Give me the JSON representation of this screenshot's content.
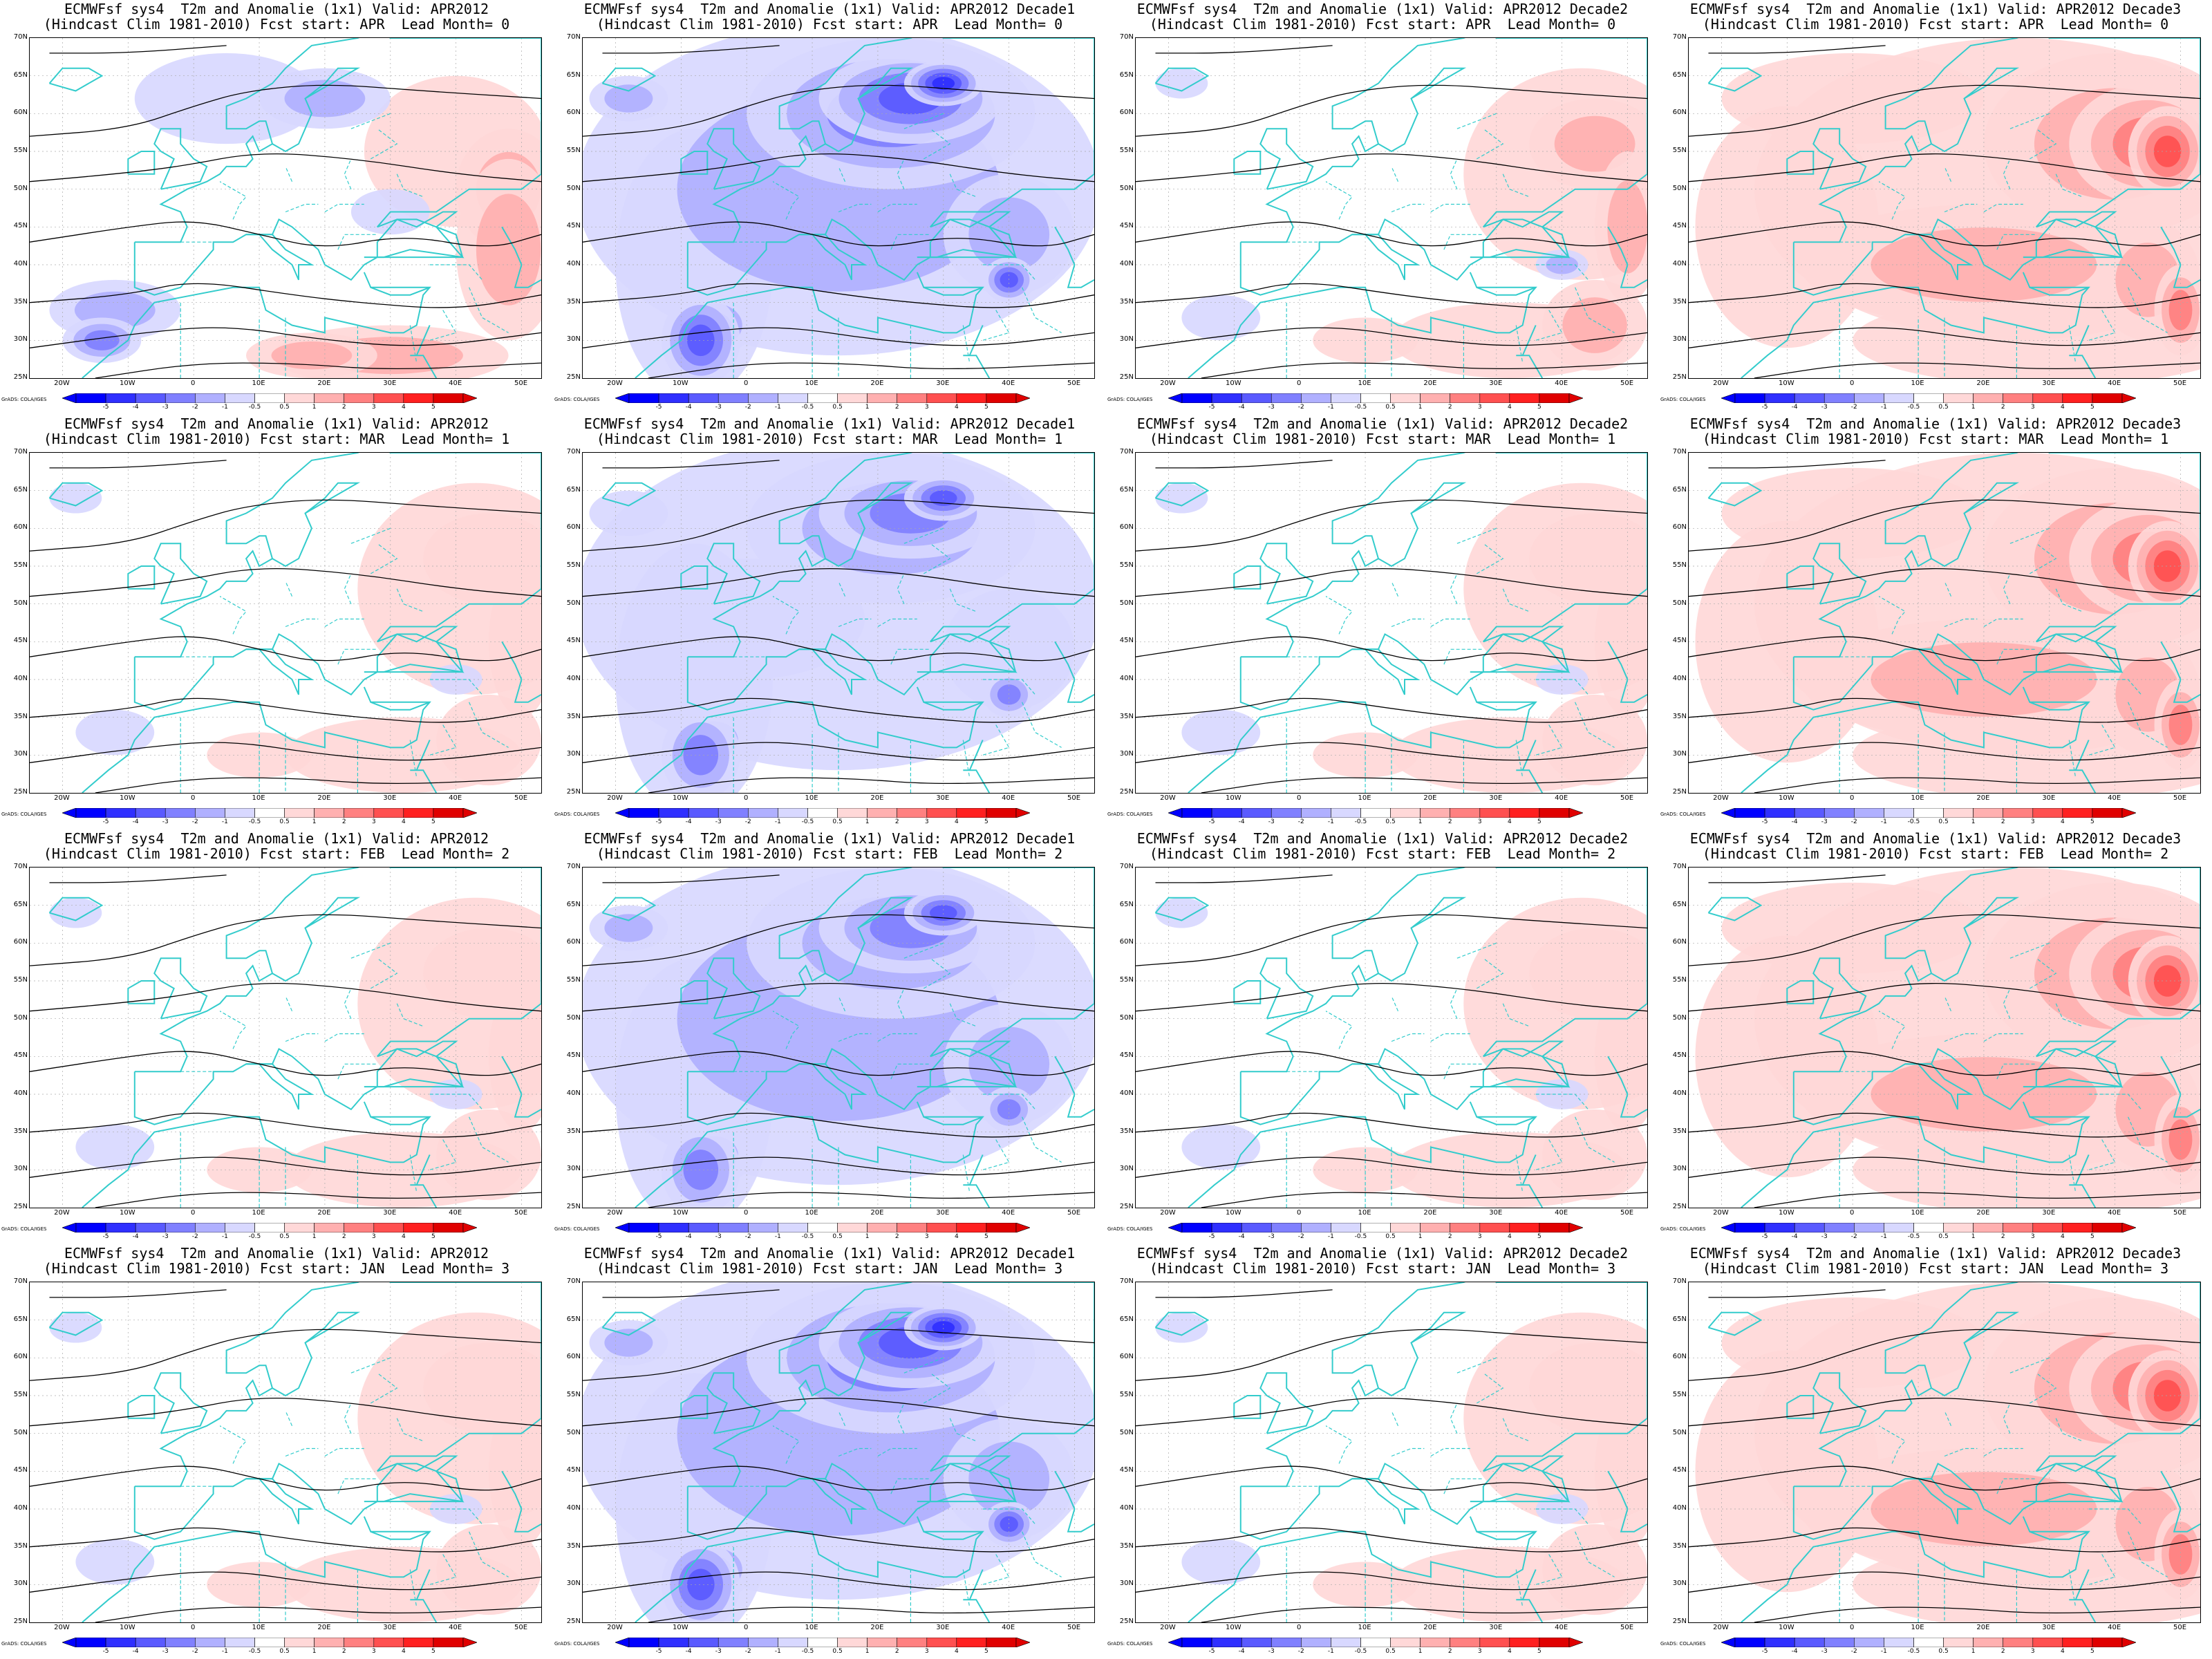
{
  "figure": {
    "common_title_prefix": "ECMWFsf sys4  T2m and Anomalie (1x1) Valid: ",
    "hindcast_prefix": "(Hindcast Clim 1981-2010) Fcst start: ",
    "lead_prefix": "  Lead Month= ",
    "credit": "GrADS: COLA/IGES",
    "lat_labels": [
      "70N",
      "65N",
      "60N",
      "55N",
      "50N",
      "45N",
      "40N",
      "35N",
      "30N",
      "25N"
    ],
    "lon_labels": [
      "20W",
      "10W",
      "0",
      "10E",
      "20E",
      "30E",
      "40E",
      "50E"
    ],
    "colorbar_labels": [
      "-5",
      "-4",
      "-3",
      "-2",
      "-1",
      "-0.5",
      "0.5",
      "1",
      "2",
      "3",
      "4",
      "5"
    ],
    "colorbar_colors": [
      "#0000ff",
      "#2f2fff",
      "#5a5aff",
      "#8080ff",
      "#b0b0ff",
      "#d8d8ff",
      "#ffffff",
      "#ffd8d8",
      "#ffb0b0",
      "#ff8080",
      "#ff5050",
      "#ff2020",
      "#e00000"
    ],
    "coastline_color": "#33cccc",
    "contour_color": "#000000"
  },
  "rows": [
    {
      "fcst_start": "APR",
      "lead": "0"
    },
    {
      "fcst_start": "MAR",
      "lead": "1"
    },
    {
      "fcst_start": "FEB",
      "lead": "2"
    },
    {
      "fcst_start": "JAN",
      "lead": "3"
    }
  ],
  "columns": [
    {
      "valid": "APR2012",
      "pattern": "mixed"
    },
    {
      "valid": "APR2012 Decade1",
      "pattern": "cold"
    },
    {
      "valid": "APR2012 Decade2",
      "pattern": "warm-east"
    },
    {
      "valid": "APR2012 Decade3",
      "pattern": "warm"
    }
  ],
  "panels": [
    {
      "title1": "ECMWFsf sys4  T2m and Anomalie (1x1) Valid: APR2012",
      "title2": "(Hindcast Clim 1981-2010) Fcst start: APR  Lead Month= 0",
      "anom": "mixed",
      "strength": 1.0
    },
    {
      "title1": "ECMWFsf sys4  T2m and Anomalie (1x1) Valid: APR2012 Decade1",
      "title2": "(Hindcast Clim 1981-2010) Fcst start: APR  Lead Month= 0",
      "anom": "cold",
      "strength": 1.0
    },
    {
      "title1": "ECMWFsf sys4  T2m and Anomalie (1x1) Valid: APR2012 Decade2",
      "title2": "(Hindcast Clim 1981-2010) Fcst start: APR  Lead Month= 0",
      "anom": "warm-east",
      "strength": 0.8
    },
    {
      "title1": "ECMWFsf sys4  T2m and Anomalie (1x1) Valid: APR2012 Decade3",
      "title2": "(Hindcast Clim 1981-2010) Fcst start: APR  Lead Month= 0",
      "anom": "warm",
      "strength": 1.0
    },
    {
      "title1": "ECMWFsf sys4  T2m and Anomalie (1x1) Valid: APR2012",
      "title2": "(Hindcast Clim 1981-2010) Fcst start: MAR  Lead Month= 1",
      "anom": "warm-east",
      "strength": 0.6
    },
    {
      "title1": "ECMWFsf sys4  T2m and Anomalie (1x1) Valid: APR2012 Decade1",
      "title2": "(Hindcast Clim 1981-2010) Fcst start: MAR  Lead Month= 1",
      "anom": "cold",
      "strength": 0.7
    },
    {
      "title1": "ECMWFsf sys4  T2m and Anomalie (1x1) Valid: APR2012 Decade2",
      "title2": "(Hindcast Clim 1981-2010) Fcst start: MAR  Lead Month= 1",
      "anom": "warm-east",
      "strength": 0.6
    },
    {
      "title1": "ECMWFsf sys4  T2m and Anomalie (1x1) Valid: APR2012 Decade3",
      "title2": "(Hindcast Clim 1981-2010) Fcst start: MAR  Lead Month= 1",
      "anom": "warm",
      "strength": 0.9
    },
    {
      "title1": "ECMWFsf sys4  T2m and Anomalie (1x1) Valid: APR2012",
      "title2": "(Hindcast Clim 1981-2010) Fcst start: FEB  Lead Month= 2",
      "anom": "warm-east",
      "strength": 0.6
    },
    {
      "title1": "ECMWFsf sys4  T2m and Anomalie (1x1) Valid: APR2012 Decade1",
      "title2": "(Hindcast Clim 1981-2010) Fcst start: FEB  Lead Month= 2",
      "anom": "cold",
      "strength": 0.8
    },
    {
      "title1": "ECMWFsf sys4  T2m and Anomalie (1x1) Valid: APR2012 Decade2",
      "title2": "(Hindcast Clim 1981-2010) Fcst start: FEB  Lead Month= 2",
      "anom": "warm-east",
      "strength": 0.5
    },
    {
      "title1": "ECMWFsf sys4  T2m and Anomalie (1x1) Valid: APR2012 Decade3",
      "title2": "(Hindcast Clim 1981-2010) Fcst start: FEB  Lead Month= 2",
      "anom": "warm",
      "strength": 0.95
    },
    {
      "title1": "ECMWFsf sys4  T2m and Anomalie (1x1) Valid: APR2012",
      "title2": "(Hindcast Clim 1981-2010) Fcst start: JAN  Lead Month= 3",
      "anom": "warm-east",
      "strength": 0.55
    },
    {
      "title1": "ECMWFsf sys4  T2m and Anomalie (1x1) Valid: APR2012 Decade1",
      "title2": "(Hindcast Clim 1981-2010) Fcst start: JAN  Lead Month= 3",
      "anom": "cold",
      "strength": 0.9
    },
    {
      "title1": "ECMWFsf sys4  T2m and Anomalie (1x1) Valid: APR2012 Decade2",
      "title2": "(Hindcast Clim 1981-2010) Fcst start: JAN  Lead Month= 3",
      "anom": "warm-east",
      "strength": 0.55
    },
    {
      "title1": "ECMWFsf sys4  T2m and Anomalie (1x1) Valid: APR2012 Decade3",
      "title2": "(Hindcast Clim 1981-2010) Fcst start: JAN  Lead Month= 3",
      "anom": "warm",
      "strength": 0.95
    }
  ]
}
